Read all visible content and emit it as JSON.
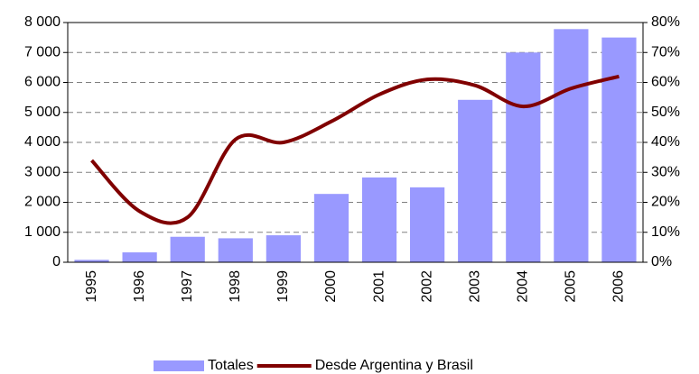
{
  "chart_data": {
    "type": "bar_line",
    "categories": [
      "1995",
      "1996",
      "1997",
      "1998",
      "1999",
      "2000",
      "2001",
      "2002",
      "2003",
      "2004",
      "2005",
      "2006"
    ],
    "series": [
      {
        "name": "Totales",
        "type": "bar",
        "color": "#9999ff",
        "values": [
          80,
          330,
          850,
          800,
          900,
          2280,
          2830,
          2500,
          5420,
          7000,
          7780,
          7500
        ]
      },
      {
        "name": "Desde Argentina y Brasil",
        "type": "line",
        "axis": "y2",
        "color": "#800000",
        "values": [
          34,
          17,
          15,
          41,
          40,
          47,
          56,
          61,
          59,
          52,
          58,
          62
        ]
      }
    ],
    "ylim": [
      0,
      8000
    ],
    "yticks": [
      {
        "value": 0,
        "label": "0"
      },
      {
        "value": 1000,
        "label": "1 000"
      },
      {
        "value": 2000,
        "label": "2 000"
      },
      {
        "value": 3000,
        "label": "3 000"
      },
      {
        "value": 4000,
        "label": "4 000"
      },
      {
        "value": 5000,
        "label": "5 000"
      },
      {
        "value": 6000,
        "label": "6 000"
      },
      {
        "value": 7000,
        "label": "7 000"
      },
      {
        "value": 8000,
        "label": "8 000"
      }
    ],
    "y2lim": [
      0,
      80
    ],
    "y2ticks": [
      {
        "value": 0,
        "label": "0%"
      },
      {
        "value": 10,
        "label": "10%"
      },
      {
        "value": 20,
        "label": "20%"
      },
      {
        "value": 30,
        "label": "30%"
      },
      {
        "value": 40,
        "label": "40%"
      },
      {
        "value": 50,
        "label": "50%"
      },
      {
        "value": 60,
        "label": "60%"
      },
      {
        "value": 70,
        "label": "70%"
      },
      {
        "value": 80,
        "label": "80%"
      }
    ],
    "grid": true,
    "legend": "bottom"
  }
}
